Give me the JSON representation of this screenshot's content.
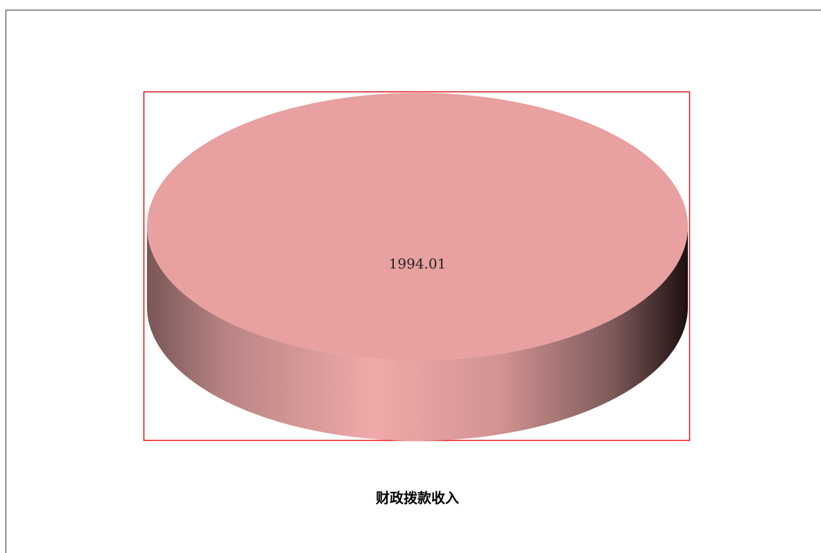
{
  "chart_data": {
    "type": "pie",
    "title": "财政拨款收入",
    "values": [
      1994.01
    ],
    "color": "#e8a0a0"
  }
}
